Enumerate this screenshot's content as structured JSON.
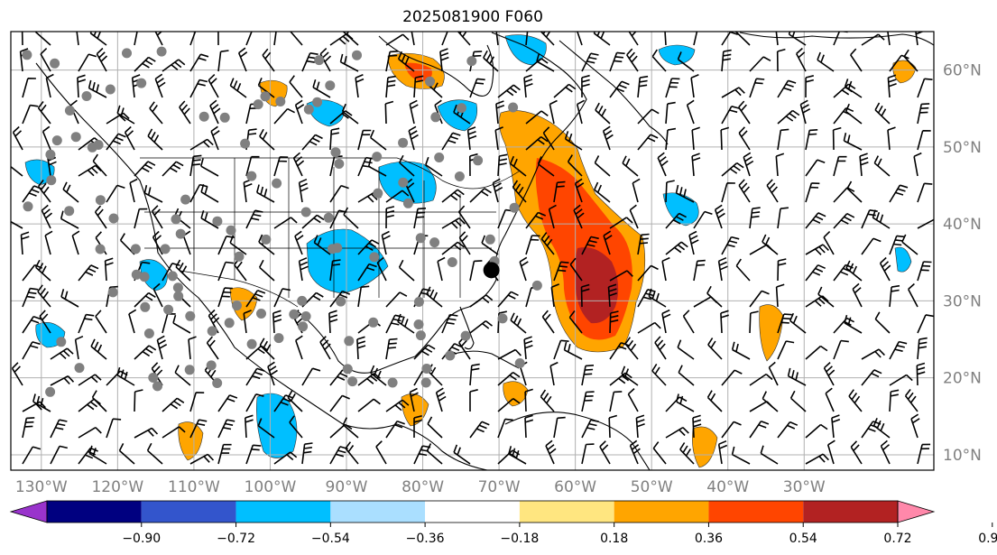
{
  "title": "2025081900 F060",
  "map": {
    "lon_range": [
      -134,
      -13
    ],
    "lat_range": [
      8,
      65
    ],
    "lon_ticks": [
      {
        "value": -130,
        "label": "130°W"
      },
      {
        "value": -120,
        "label": "120°W"
      },
      {
        "value": -110,
        "label": "110°W"
      },
      {
        "value": -100,
        "label": "100°W"
      },
      {
        "value": -90,
        "label": "90°W"
      },
      {
        "value": -80,
        "label": "80°W"
      },
      {
        "value": -70,
        "label": "70°W"
      },
      {
        "value": -60,
        "label": "60°W"
      },
      {
        "value": -50,
        "label": "50°W"
      },
      {
        "value": -40,
        "label": "40°W"
      },
      {
        "value": -30,
        "label": "30°W"
      }
    ],
    "lat_ticks": [
      {
        "value": 60,
        "label": "60°N"
      },
      {
        "value": 50,
        "label": "50°N"
      },
      {
        "value": 40,
        "label": "40°N"
      },
      {
        "value": 30,
        "label": "30°N"
      },
      {
        "value": 20,
        "label": "20°N"
      },
      {
        "value": 10,
        "label": "10°N"
      }
    ],
    "grid": true,
    "storm_marker": {
      "lon": -71,
      "lat": 34
    }
  },
  "colorbar": {
    "labels": [
      "−0.90",
      "−0.72",
      "−0.54",
      "−0.36",
      "−0.18",
      "0.18",
      "0.36",
      "0.54",
      "0.72",
      "0.90"
    ],
    "colors": [
      "#9933cc",
      "#000080",
      "#3355cc",
      "#00bfff",
      "#aadfff",
      "#ffffff",
      "#ffe680",
      "#ffa500",
      "#ff4500",
      "#b22222",
      "#ff88aa"
    ]
  }
}
